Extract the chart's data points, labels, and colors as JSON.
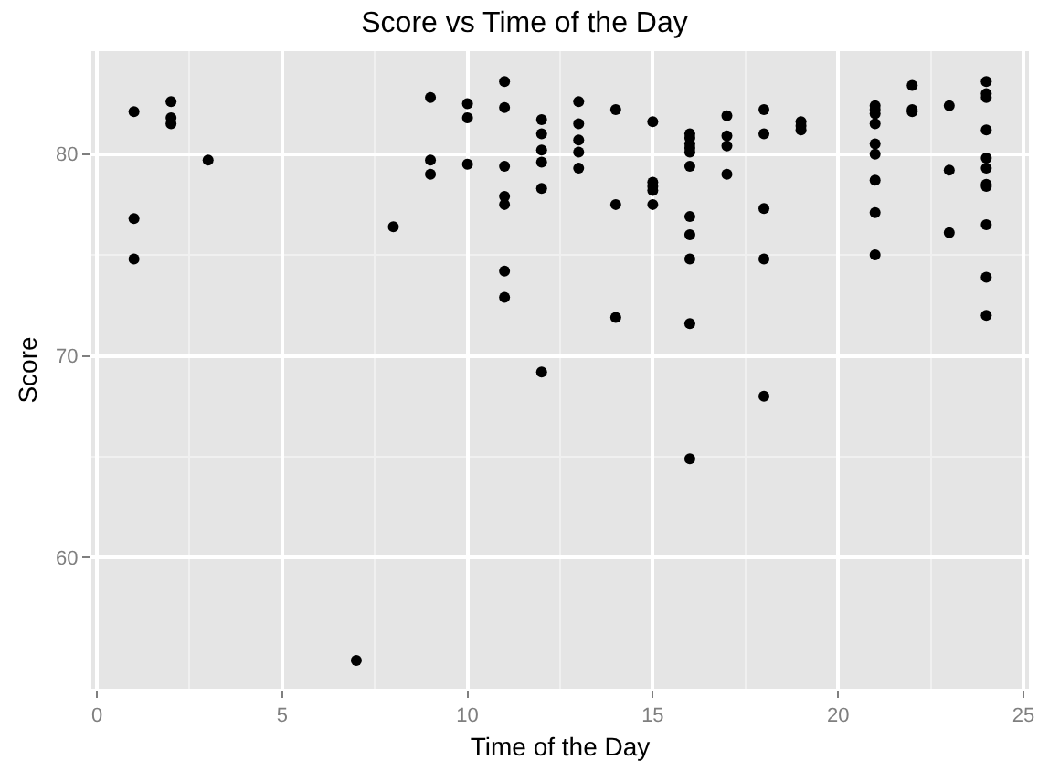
{
  "chart_data": {
    "type": "scatter",
    "title": "Score vs Time of the Day",
    "xlabel": "Time of the Day",
    "ylabel": "Score",
    "x": [
      1,
      1,
      1,
      2,
      2,
      2,
      3,
      7,
      8,
      9,
      9,
      9,
      10,
      10,
      10,
      11,
      11,
      11,
      11,
      11,
      11,
      11,
      12,
      12,
      12,
      12,
      12,
      12,
      13,
      13,
      13,
      13,
      13,
      14,
      14,
      14,
      15,
      15,
      15,
      15,
      15,
      16,
      16,
      16,
      16,
      16,
      16,
      16,
      16,
      16,
      16,
      16,
      17,
      17,
      17,
      17,
      18,
      18,
      18,
      18,
      18,
      19,
      19,
      19,
      21,
      21,
      21,
      21,
      21,
      21,
      21,
      21,
      21,
      22,
      22,
      22,
      23,
      23,
      23,
      24,
      24,
      24,
      24,
      24,
      24,
      24,
      24,
      24,
      24,
      24
    ],
    "values": [
      82.1,
      76.8,
      74.8,
      82.6,
      81.8,
      81.5,
      79.7,
      54.9,
      76.4,
      82.8,
      79.7,
      79.0,
      82.5,
      81.8,
      79.5,
      83.6,
      82.3,
      79.4,
      77.9,
      77.5,
      74.2,
      72.9,
      81.7,
      81.0,
      80.2,
      79.6,
      78.3,
      69.2,
      82.6,
      81.5,
      80.7,
      80.1,
      79.3,
      82.2,
      77.5,
      71.9,
      81.6,
      78.6,
      78.4,
      78.2,
      77.5,
      81.0,
      80.8,
      80.5,
      80.3,
      80.1,
      79.4,
      76.9,
      76.0,
      74.8,
      71.6,
      64.9,
      81.9,
      80.9,
      80.4,
      79.0,
      82.2,
      81.0,
      77.3,
      74.8,
      68.0,
      81.6,
      81.4,
      81.2,
      82.4,
      82.2,
      82.0,
      81.5,
      80.5,
      80.0,
      78.7,
      77.1,
      75.0,
      83.4,
      82.2,
      82.1,
      82.4,
      79.2,
      76.1,
      83.6,
      83.0,
      82.8,
      81.2,
      79.8,
      79.3,
      78.5,
      78.4,
      76.5,
      73.9,
      72.0
    ],
    "color": "#000000",
    "marker": "circle",
    "xlim": [
      -0.15,
      25.15
    ],
    "xticks": [
      0,
      5,
      10,
      15,
      20,
      25
    ],
    "ylim": [
      53.5,
      85.1
    ],
    "yticks": [
      60,
      70,
      80
    ],
    "grid": true
  }
}
